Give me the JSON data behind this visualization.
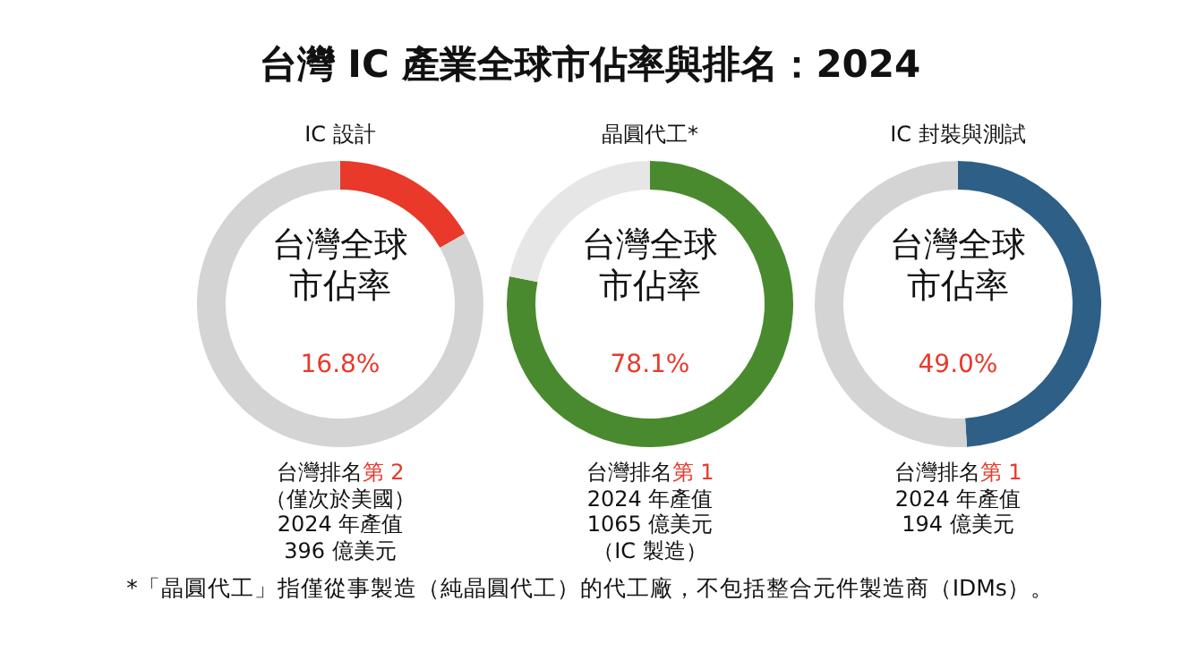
{
  "chart_data": [
    {
      "type": "other",
      "title": "台灣 IC 產業全球市佔率與排名：2024",
      "annotations": [
        "*「晶圓代工」指僅從事製造（純晶圓代工）的代工廠，不包括整合元件製造商（IDMs）。"
      ]
    },
    {
      "type": "donut",
      "title": "IC 設計",
      "categories": [
        null,
        null
      ],
      "values": [
        16.8,
        83.2
      ],
      "colors": [
        "#e8392a",
        "#d4d4d4"
      ],
      "annotations": [
        "台灣全球市佔率",
        "16.8%",
        "台灣排名",
        "第 2",
        "（僅次於美國）",
        "2024 年產值",
        "396 億美元"
      ]
    },
    {
      "type": "donut",
      "title": "晶圓代工*",
      "categories": [
        null,
        null
      ],
      "values": [
        78.1,
        21.9
      ],
      "colors": [
        "#4a8a2e",
        "#e6e6e6"
      ],
      "annotations": [
        "台灣全球市佔率",
        "78.1%",
        "台灣排名",
        "第 1",
        "2024 年產值",
        "1065 億美元",
        "（IC 製造）"
      ]
    },
    {
      "type": "donut",
      "title": "IC 封裝與測試",
      "categories": [
        null,
        null
      ],
      "values": [
        49.0,
        51.0
      ],
      "colors": [
        "#2e5f86",
        "#d4d4d4"
      ],
      "annotations": [
        "台灣全球市佔率",
        "49.0%",
        "台灣排名",
        "第 1",
        "2024 年產值",
        "194 億美元"
      ]
    }
  ]
}
